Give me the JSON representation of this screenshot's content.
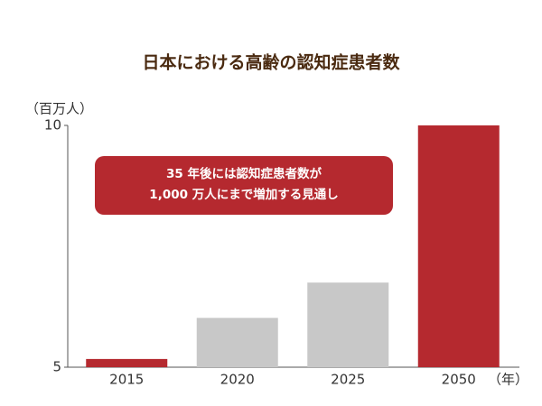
{
  "chart_data": {
    "type": "bar",
    "title": "日本における高齢の認知症患者数",
    "y_unit": "（百万人）",
    "x_unit": "（年）",
    "annotation": [
      "35 年後には認知症患者数が",
      "1,000 万人にまで増加する見通し"
    ],
    "categories": [
      "2015",
      "2020",
      "2025",
      "2050"
    ],
    "values": [
      5.17,
      6.02,
      6.75,
      10
    ],
    "colors": [
      "#b5292f",
      "#c8c8c8",
      "#c8c8c8",
      "#b5292f"
    ],
    "annotation_color": "#b5292f",
    "ylim": [
      5,
      10
    ],
    "yticks": [
      5,
      10
    ]
  }
}
